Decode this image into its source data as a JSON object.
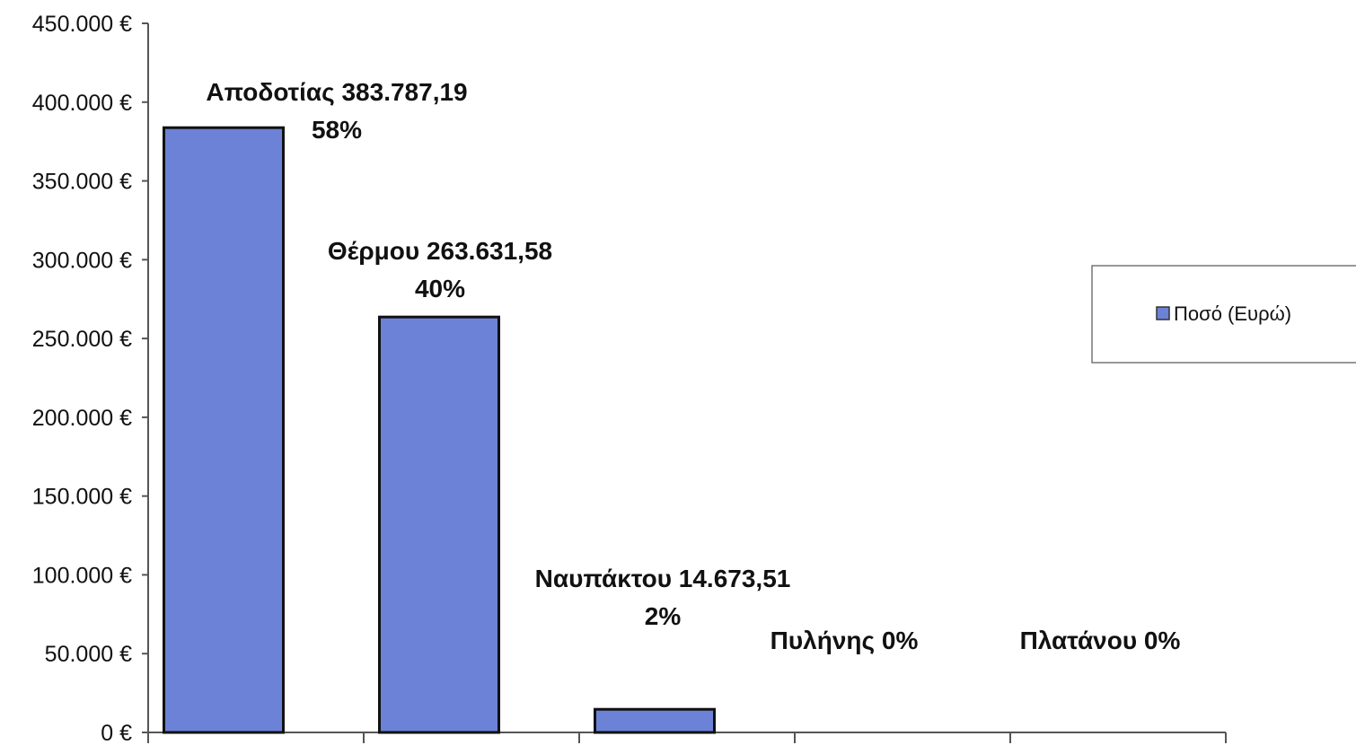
{
  "chart_data": {
    "type": "bar",
    "categories": [
      "Αποδοτίας",
      "Θέρμου",
      "Ναυπάκτου",
      "Πυλήνης",
      "Πλατάνου"
    ],
    "series": [
      {
        "name": "Ποσό (Ευρώ)",
        "values": [
          383787.19,
          263631.58,
          14673.51,
          0,
          0
        ],
        "color": "#6b82d6"
      }
    ],
    "data_labels": [
      {
        "line1": "Αποδοτίας  383.787,19",
        "line2": "58%"
      },
      {
        "line1": "Θέρμου 263.631,58",
        "line2": "40%"
      },
      {
        "line1": "Ναυπάκτου  14.673,51",
        "line2": "2%"
      },
      {
        "line1": "Πυλήνης  0%",
        "line2": ""
      },
      {
        "line1": "Πλατάνου 0%",
        "line2": ""
      }
    ],
    "y_ticks": [
      "0 €",
      "50.000 €",
      "100.000 €",
      "150.000 €",
      "200.000 €",
      "250.000 €",
      "300.000 €",
      "350.000 €",
      "400.000 €",
      "450.000 €"
    ],
    "ylim": [
      0,
      450000
    ],
    "title": "",
    "xlabel": "",
    "ylabel": "",
    "legend": {
      "label": "Ποσό (Ευρώ)",
      "placement": "right"
    },
    "grid": false
  }
}
